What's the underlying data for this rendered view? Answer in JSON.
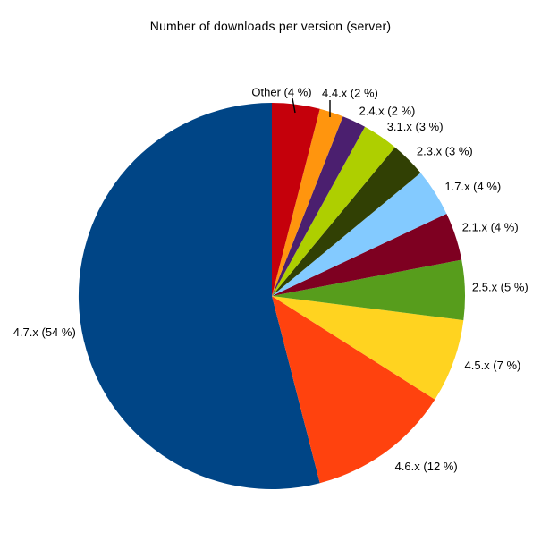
{
  "chart_data": {
    "type": "pie",
    "title": "Number of downloads per version (server)",
    "label_format": "{label} ({value} %)",
    "unit": "%",
    "legend": "none",
    "grid": "none",
    "start_angle": "12-oclock",
    "direction": "counterclockwise",
    "background_color": "#ffffff",
    "label_color": "#000000",
    "slices": [
      {
        "label": "4.7.x",
        "value": 54,
        "color": "#004586"
      },
      {
        "label": "4.6.x",
        "value": 12,
        "color": "#ff420e"
      },
      {
        "label": "4.5.x",
        "value": 7,
        "color": "#ffd320"
      },
      {
        "label": "2.5.x",
        "value": 5,
        "color": "#579d1c"
      },
      {
        "label": "2.1.x",
        "value": 4,
        "color": "#7e0021"
      },
      {
        "label": "1.7.x",
        "value": 4,
        "color": "#83caff"
      },
      {
        "label": "2.3.x",
        "value": 3,
        "color": "#314004"
      },
      {
        "label": "3.1.x",
        "value": 3,
        "color": "#aecf00"
      },
      {
        "label": "2.4.x",
        "value": 2,
        "color": "#4b1f6f"
      },
      {
        "label": "4.4.x",
        "value": 2,
        "color": "#ff950e"
      },
      {
        "label": "Other",
        "value": 4,
        "color": "#c5000b"
      }
    ],
    "leader_line_slices": [
      "Other",
      "4.4.x"
    ]
  }
}
